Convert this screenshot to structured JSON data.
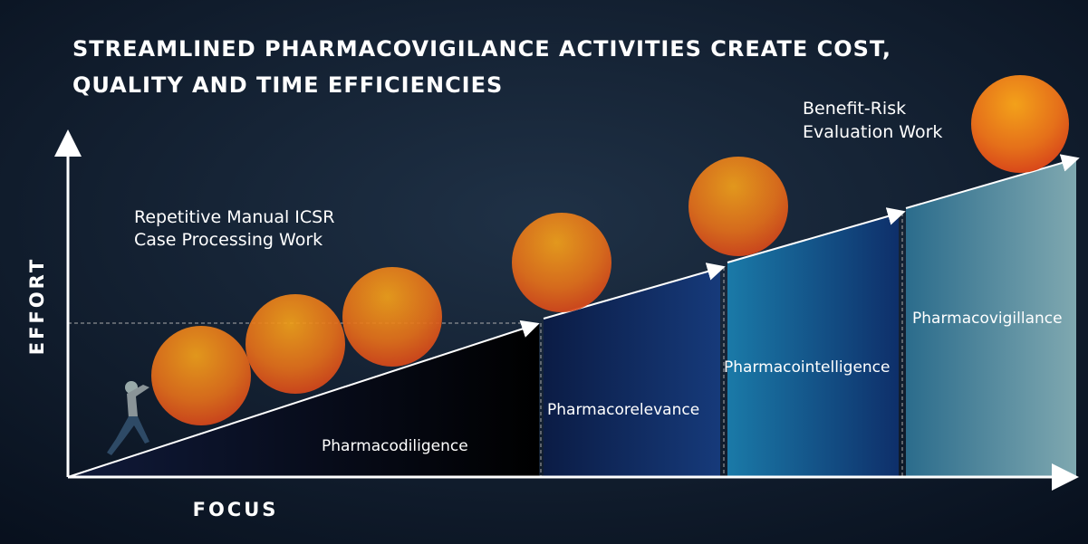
{
  "title": {
    "lines": [
      "STREAMLINED PHARMACOVIGILANCE ACTIVITIES CREATE COST,",
      "QUALITY AND TIME EFFICIENCIES"
    ]
  },
  "axes": {
    "y_label": "EFFORT",
    "x_label": "FOCUS"
  },
  "annotations": [
    {
      "lines": [
        "Repetitive Manual ICSR",
        "Case Processing Work"
      ]
    },
    {
      "lines": [
        "Benefit-Risk",
        "Evaluation Work"
      ]
    }
  ],
  "stages": [
    {
      "label": "Pharmacodiligence"
    },
    {
      "label": "Pharmacorelevance"
    },
    {
      "label": "Pharmacointelligence"
    },
    {
      "label": "Pharmacovigillance"
    }
  ]
}
